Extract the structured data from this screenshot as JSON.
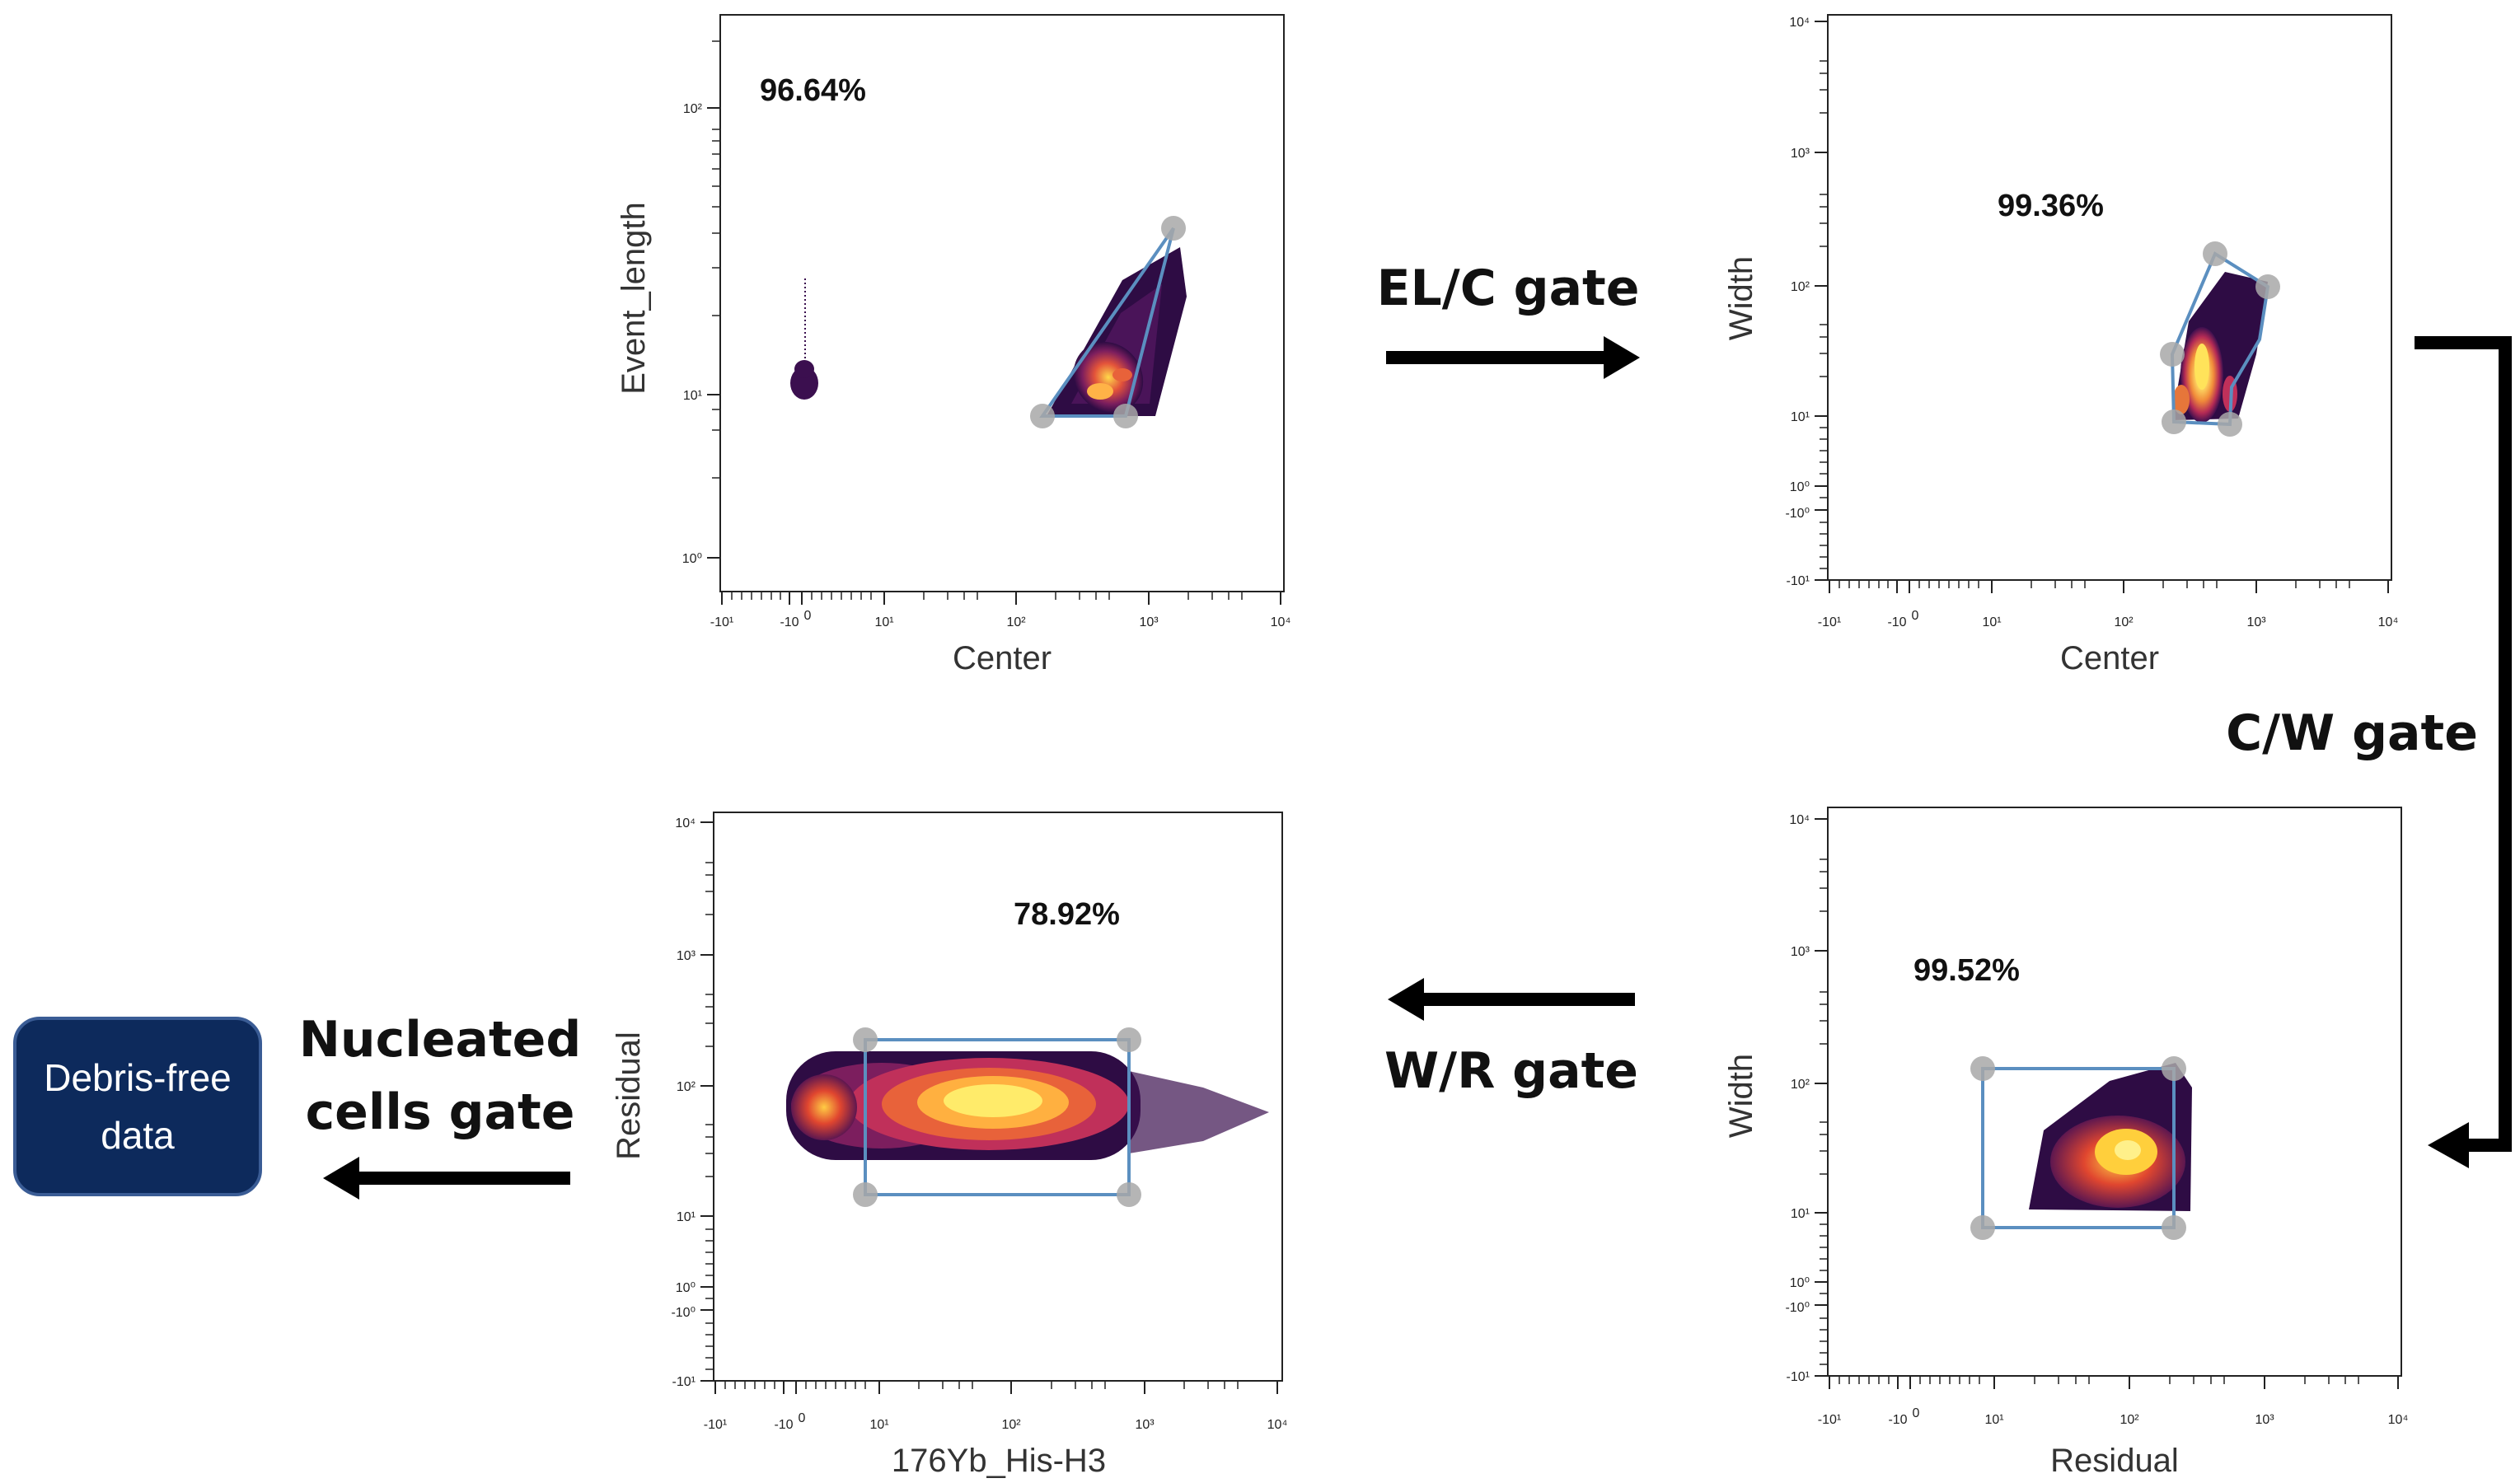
{
  "plots": [
    {
      "id": "elc",
      "xlabel": "Center",
      "ylabel": "Event_length",
      "percent": "96.64%",
      "xticks": [
        "-10¹",
        "-10",
        "0",
        "10¹",
        "10²",
        "10³",
        "10⁴"
      ],
      "yticks": [
        "10⁰",
        "10¹",
        "10²"
      ]
    },
    {
      "id": "cw",
      "xlabel": "Center",
      "ylabel": "Width",
      "percent": "99.36%",
      "xticks": [
        "-10¹",
        "-10",
        "0",
        "10¹",
        "10²",
        "10³",
        "10⁴"
      ],
      "yticks": [
        "-10¹",
        "-10⁰",
        "10⁰",
        "10¹",
        "10²",
        "10³",
        "10⁴"
      ]
    },
    {
      "id": "wr",
      "xlabel": "Residual",
      "ylabel": "Width",
      "percent": "99.52%",
      "xticks": [
        "-10¹",
        "-10",
        "0",
        "10¹",
        "10²",
        "10³",
        "10⁴"
      ],
      "yticks": [
        "-10¹",
        "-10⁰",
        "10⁰",
        "10¹",
        "10²",
        "10³",
        "10⁴"
      ]
    },
    {
      "id": "nuc",
      "xlabel": "176Yb_His-H3",
      "ylabel": "Residual",
      "percent": "78.92%",
      "xticks": [
        "-10¹",
        "-10",
        "0",
        "10¹",
        "10²",
        "10³",
        "10⁴"
      ],
      "yticks": [
        "-10¹",
        "-10⁰",
        "10⁰",
        "10¹",
        "10²",
        "10³",
        "10⁴"
      ]
    }
  ],
  "flow": {
    "elc_gate": "EL/C gate",
    "cw_gate": "C/W gate",
    "wr_gate": "W/R gate",
    "nucleated_line1": "Nucleated",
    "nucleated_line2": "cells gate"
  },
  "output_box": {
    "line1": "Debris-free",
    "line2": "data",
    "color": "#0d2a5c"
  },
  "colors": {
    "gate": "#5b8fc0",
    "gate_handle": "#a8a8a8",
    "arrow": "#000000",
    "density_low": "#3b0f4f",
    "density_mid": "#c0305a",
    "density_high": "#fff27a"
  }
}
